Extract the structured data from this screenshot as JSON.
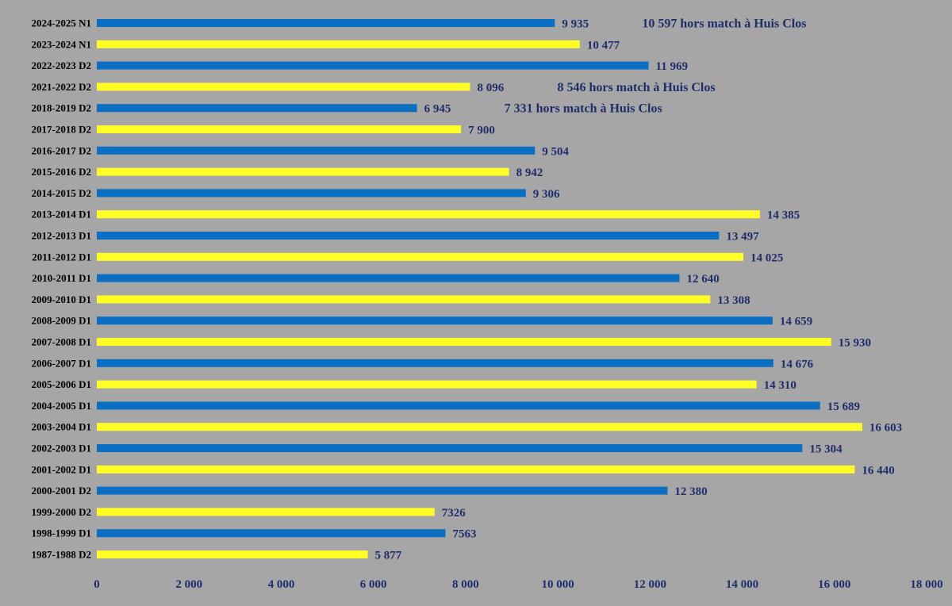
{
  "chart_data": {
    "type": "bar",
    "orientation": "horizontal",
    "categories": [
      "2024-2025 N1",
      "2023-2024 N1",
      "2022-2023 D2",
      "2021-2022 D2",
      "2018-2019 D2",
      "2017-2018 D2",
      "2016-2017 D2",
      "2015-2016 D2",
      "2014-2015 D2",
      "2013-2014 D1",
      "2012-2013 D1",
      "2011-2012 D1",
      "2010-2011 D1",
      "2009-2010 D1",
      "2008-2009 D1",
      "2007-2008 D1",
      "2006-2007 D1",
      "2005-2006 D1",
      "2004-2005 D1",
      "2003-2004 D1",
      "2002-2003 D1",
      "2001-2002 D1",
      "2000-2001 D2",
      "1999-2000 D2",
      "1998-1999 D1",
      "1987-1988 D2"
    ],
    "values": [
      9935,
      10477,
      11969,
      8096,
      6945,
      7900,
      9504,
      8942,
      9306,
      14385,
      13497,
      14025,
      12640,
      13308,
      14659,
      15930,
      14676,
      14310,
      15689,
      16603,
      15304,
      16440,
      12380,
      7326,
      7563,
      5877
    ],
    "value_labels": [
      "9 935",
      "10 477",
      "11 969",
      "8 096",
      "6 945",
      "7 900",
      "9 504",
      "8 942",
      "9 306",
      "14 385",
      "13 497",
      "14 025",
      "12 640",
      "13 308",
      "14 659",
      "15 930",
      "14 676",
      "14 310",
      "15 689",
      "16 603",
      "15 304",
      "16 440",
      "12 380",
      "7326",
      "7563",
      "5 877"
    ],
    "bar_colors": [
      "#0a6fc2",
      "#ffff26"
    ],
    "annotations": [
      {
        "category": "2024-2025 N1",
        "text": "10 597 hors match à Huis Clos",
        "value": 10597
      },
      {
        "category": "2021-2022 D2",
        "text": "8 546 hors match à Huis Clos",
        "value": 8546
      },
      {
        "category": "2018-2019 D2",
        "text": "7 331 hors match à Huis Clos",
        "value": 7331
      }
    ],
    "xlim": [
      0,
      18000
    ],
    "x_ticks": [
      0,
      2000,
      4000,
      6000,
      8000,
      10000,
      12000,
      14000,
      16000,
      18000
    ],
    "x_tick_labels": [
      "0",
      "2 000",
      "4 000",
      "6 000",
      "8 000",
      "10 000",
      "12 000",
      "14 000",
      "16 000",
      "18 000"
    ],
    "grid": false,
    "legend": "none",
    "title": "",
    "xlabel": "",
    "ylabel": "",
    "background": "#a6a6a6"
  }
}
